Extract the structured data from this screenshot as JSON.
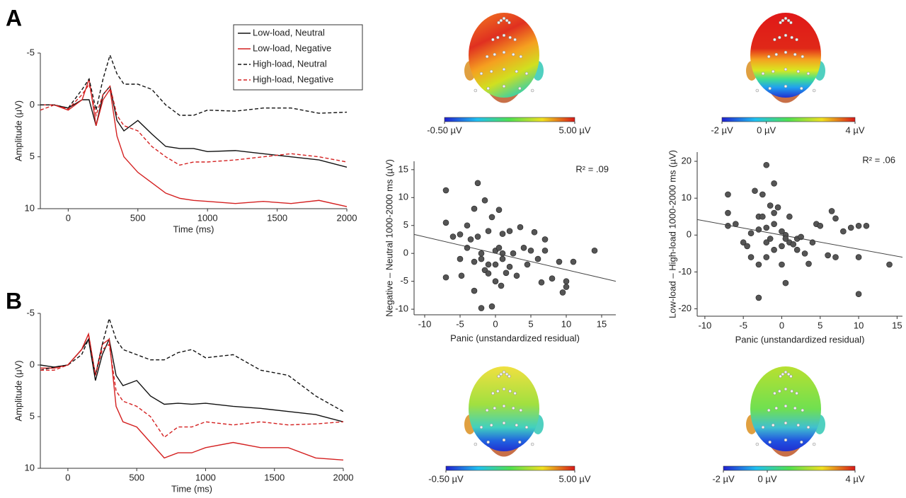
{
  "panels": [
    "A",
    "B"
  ],
  "colorbars": [
    {
      "labels": [
        "-0.50 µV",
        "5.00 µV"
      ]
    },
    {
      "labels": [
        "-2 µV",
        "0 µV",
        "4 µV"
      ]
    },
    {
      "labels": [
        "-0.50 µV",
        "5.00 µV"
      ]
    },
    {
      "labels": [
        "-2 µV",
        "0 µV",
        "4 µV"
      ]
    }
  ],
  "chart_data": [
    {
      "type": "line",
      "x_label": "Time (ms)",
      "y_label": "Amplitude (μV)",
      "x": [
        -200,
        -100,
        0,
        100,
        150,
        200,
        250,
        300,
        350,
        400,
        500,
        600,
        700,
        800,
        900,
        1000,
        1200,
        1400,
        1600,
        1800,
        2000
      ],
      "xlim": [
        -200,
        2000
      ],
      "xticks": [
        0,
        500,
        1000,
        1500,
        2000
      ],
      "ylim": [
        -5,
        10
      ],
      "yticks": [
        -5,
        0,
        5,
        10
      ],
      "y_reversed": true,
      "legend": "top-right",
      "series": [
        {
          "name": "Low-load, Neutral",
          "color": "#111111",
          "dashed": false,
          "values": [
            0,
            0,
            0.3,
            -0.5,
            -0.5,
            2,
            -1,
            -1.8,
            1.5,
            2.5,
            1.5,
            2.8,
            4,
            4.2,
            4.2,
            4.5,
            4.4,
            4.7,
            5,
            5.3,
            6
          ]
        },
        {
          "name": "Low-load, Negative",
          "color": "#d42020",
          "dashed": false,
          "values": [
            0,
            0,
            0.5,
            -0.5,
            -2.5,
            2,
            -0.5,
            -1.5,
            3,
            5,
            6.5,
            7.5,
            8.5,
            9,
            9.2,
            9.3,
            9.5,
            9.3,
            9.5,
            9.2,
            9.8
          ]
        },
        {
          "name": "High-load, Neutral",
          "color": "#111111",
          "dashed": true,
          "values": [
            0,
            0,
            0.3,
            -1.5,
            -2.5,
            0.5,
            -2.5,
            -4.8,
            -3,
            -2,
            -2,
            -1.5,
            0,
            1,
            1,
            0.5,
            0.6,
            0.3,
            0.3,
            0.8,
            0.7
          ]
        },
        {
          "name": "High-load, Negative",
          "color": "#d42020",
          "dashed": true,
          "values": [
            0.5,
            0,
            0.4,
            -1,
            -2,
            1,
            -1,
            -1.8,
            1,
            2,
            2.5,
            4,
            5,
            5.8,
            5.5,
            5.5,
            5.3,
            5,
            4.7,
            5,
            5.5
          ]
        }
      ]
    },
    {
      "type": "line",
      "x_label": "Time (ms)",
      "y_label": "Amplitude (μV)",
      "x": [
        -200,
        -100,
        0,
        100,
        150,
        200,
        250,
        300,
        350,
        400,
        500,
        600,
        700,
        800,
        900,
        1000,
        1200,
        1400,
        1600,
        1800,
        2000
      ],
      "xlim": [
        -200,
        2000
      ],
      "xticks": [
        0,
        500,
        1000,
        1500,
        2000
      ],
      "ylim": [
        -5,
        10
      ],
      "yticks": [
        -5,
        0,
        5,
        10
      ],
      "y_reversed": true,
      "series": [
        {
          "color": "#111111",
          "dashed": false,
          "values": [
            0,
            0.2,
            0,
            -1.5,
            -2.5,
            1.5,
            -1,
            -2.5,
            1,
            2,
            1.5,
            3,
            3.8,
            3.7,
            3.8,
            3.7,
            4,
            4.2,
            4.5,
            4.8,
            5.5
          ]
        },
        {
          "color": "#d42020",
          "dashed": false,
          "values": [
            0.3,
            0.3,
            0,
            -1.5,
            -3,
            1,
            -2,
            -2.5,
            4,
            5.5,
            6,
            7.5,
            9,
            8.5,
            8.5,
            8,
            7.5,
            8,
            8,
            9,
            9.2
          ]
        },
        {
          "color": "#111111",
          "dashed": true,
          "values": [
            0.5,
            0.2,
            0,
            -1,
            -2.5,
            1,
            -2,
            -4.5,
            -2.5,
            -1.5,
            -1,
            -0.5,
            -0.5,
            -1.2,
            -1.5,
            -0.7,
            -1,
            0.5,
            1,
            3,
            4.5
          ]
        },
        {
          "color": "#d42020",
          "dashed": true,
          "values": [
            0.5,
            0.5,
            0,
            -1.5,
            -3,
            1,
            -1.5,
            -2,
            2.5,
            3.5,
            4,
            5,
            7,
            6,
            6,
            5.5,
            5.8,
            5.5,
            5.8,
            5.7,
            5.5
          ]
        }
      ]
    },
    {
      "type": "scatter",
      "x_label": "Panic (unstandardized residual)",
      "y_label": "Negative – Neutral 1000-2000 ms (µV)",
      "annotation": "R² = .09",
      "xlim": [
        -11.5,
        17
      ],
      "xticks": [
        -10,
        -5,
        0,
        5,
        10,
        15
      ],
      "ylim": [
        -11,
        16.5
      ],
      "yticks": [
        -10,
        -5,
        0,
        5,
        10,
        15
      ],
      "color": "#555555",
      "x": [
        -7,
        -7,
        -7,
        -6,
        -5,
        -5,
        -4.8,
        -4,
        -4,
        -3.5,
        -3,
        -3,
        -2.5,
        -2.5,
        -2,
        -2,
        -1.5,
        -1.5,
        -1,
        -1,
        -1,
        -0.5,
        -0.5,
        0,
        0,
        0,
        0.5,
        0.5,
        0.8,
        1,
        1,
        1.5,
        2,
        2,
        2.5,
        3,
        3.5,
        4,
        4.5,
        5,
        5.5,
        6,
        6.5,
        7,
        8,
        9,
        9.5,
        10,
        10,
        11,
        14,
        7,
        -3,
        -2,
        1
      ],
      "values": [
        11.3,
        5.5,
        -4.3,
        3,
        3.4,
        -1,
        -4,
        5,
        1,
        2.5,
        8,
        -6.7,
        12.6,
        3,
        -1,
        -9.8,
        9.5,
        -3,
        4,
        -2,
        -3.6,
        -9.5,
        6.5,
        0.5,
        -5,
        -2,
        7.8,
        1,
        -5.8,
        3.5,
        -1,
        -3.5,
        4,
        -2.4,
        0,
        -4,
        4.7,
        1,
        -2,
        0.5,
        3.8,
        -1,
        -5.2,
        2.5,
        -4.5,
        -1.5,
        -7,
        -6,
        -5,
        -1.5,
        0.5,
        0.5,
        -1.5,
        0,
        0
      ],
      "trend_line": {
        "x": [
          -11.5,
          17
        ],
        "y": [
          3.4,
          -5.0
        ]
      }
    },
    {
      "type": "scatter",
      "x_label": "Panic (unstandardized residual)",
      "y_label": "Low-load – High-load 1000-2000 ms (µV)",
      "annotation": "R² = .06",
      "xlim": [
        -11,
        15.7
      ],
      "xticks": [
        -10,
        -5,
        0,
        5,
        10,
        15
      ],
      "ylim": [
        -22,
        22.5
      ],
      "yticks": [
        -20,
        -10,
        0,
        10,
        20
      ],
      "color": "#555555",
      "x": [
        -7,
        -7,
        -7,
        -6,
        -5,
        -4.5,
        -4,
        -3.5,
        -3,
        -3,
        -3,
        -2.5,
        -2,
        -2,
        -2,
        -1.5,
        -1.5,
        -1,
        -1,
        -1,
        -0.5,
        0,
        0,
        0,
        0.5,
        0.5,
        1,
        1,
        2,
        2,
        3,
        3.5,
        4,
        4.5,
        5,
        6,
        6.5,
        7,
        7,
        8,
        9,
        10,
        10,
        10,
        11,
        14,
        -4,
        -2.5,
        -1,
        0.5,
        -3,
        -2,
        1.5,
        2.5
      ],
      "values": [
        11,
        6,
        2.5,
        3,
        -2,
        -3,
        0.5,
        12,
        5,
        -8,
        -17,
        11,
        19,
        2,
        -6,
        8,
        -1,
        14,
        3,
        -4,
        7.5,
        1,
        -3,
        -8,
        0,
        -13,
        5,
        -2,
        -4,
        -1,
        -5,
        -7.8,
        -2,
        3,
        2.5,
        -5.5,
        6.5,
        4.5,
        -6,
        1,
        2,
        -6,
        2.5,
        -16,
        2.5,
        -8,
        -6,
        5,
        6,
        -1,
        1.5,
        -2,
        -2.5,
        -0.5
      ],
      "trend_line": {
        "x": [
          -11,
          15.7
        ],
        "y": [
          4.2,
          -6.0
        ]
      }
    }
  ]
}
